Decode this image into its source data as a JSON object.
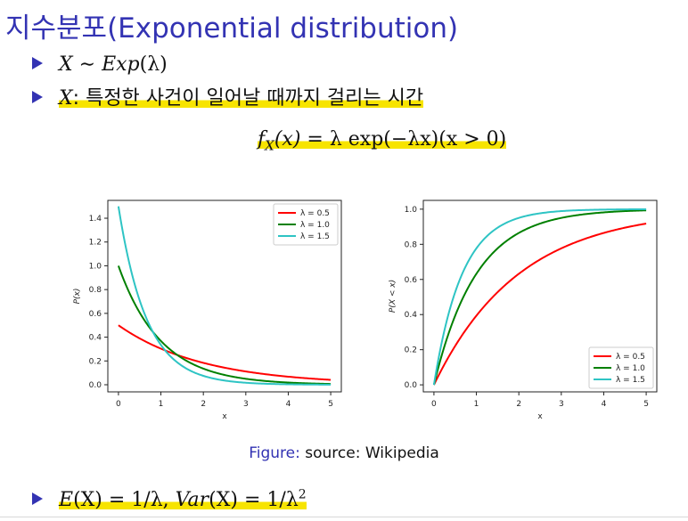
{
  "slide": {
    "title": "지수분포(Exponential distribution)",
    "bullet1": {
      "var": "X",
      "sim": " ∼ ",
      "dist": "Exp",
      "param": "(λ)"
    },
    "bullet2": {
      "var": "X",
      "text": ": 특정한 사건이 일어날 때까지 걸리는 시간"
    },
    "pdf_formula": {
      "lhs_f": "f",
      "lhs_sub": "X",
      "lhs_arg": "(x)",
      "eq": " = λ exp(−λx)(x > 0)"
    },
    "caption": {
      "figure": "Figure:",
      "source": " source: Wikipedia"
    },
    "bullet3": {
      "e": "E",
      "e_arg": "(X) = 1/λ, ",
      "var": "Var",
      "var_arg": "(X) = 1/λ",
      "sup": "2"
    },
    "colors": {
      "title": "#3333b3",
      "highlight": "#f7e400",
      "red": "#ff0000",
      "green": "#008000",
      "cyan": "#2ec4c4"
    }
  },
  "chart_data": [
    {
      "type": "line",
      "ylabel": "P(x)",
      "xlabel": "x",
      "xlim": [
        0,
        5
      ],
      "ylim": [
        0,
        1.5
      ],
      "xticks": [
        "0",
        "1",
        "2",
        "3",
        "4",
        "5"
      ],
      "yticks": [
        "0.0",
        "0.2",
        "0.4",
        "0.6",
        "0.8",
        "1.0",
        "1.2",
        "1.4"
      ],
      "legend_position": "top-right",
      "function": "pdf",
      "series": [
        {
          "name": "λ = 0.5",
          "lambda": 0.5,
          "color": "#ff0000"
        },
        {
          "name": "λ = 1.0",
          "lambda": 1.0,
          "color": "#008000"
        },
        {
          "name": "λ = 1.5",
          "lambda": 1.5,
          "color": "#2ec4c4"
        }
      ]
    },
    {
      "type": "line",
      "ylabel": "P(X < x)",
      "xlabel": "x",
      "xlim": [
        0,
        5
      ],
      "ylim": [
        0,
        1.0
      ],
      "xticks": [
        "0",
        "1",
        "2",
        "3",
        "4",
        "5"
      ],
      "yticks": [
        "0.0",
        "0.2",
        "0.4",
        "0.6",
        "0.8",
        "1.0"
      ],
      "legend_position": "bottom-right",
      "function": "cdf",
      "series": [
        {
          "name": "λ = 0.5",
          "lambda": 0.5,
          "color": "#ff0000"
        },
        {
          "name": "λ = 1.0",
          "lambda": 1.0,
          "color": "#008000"
        },
        {
          "name": "λ = 1.5",
          "lambda": 1.5,
          "color": "#2ec4c4"
        }
      ]
    }
  ]
}
